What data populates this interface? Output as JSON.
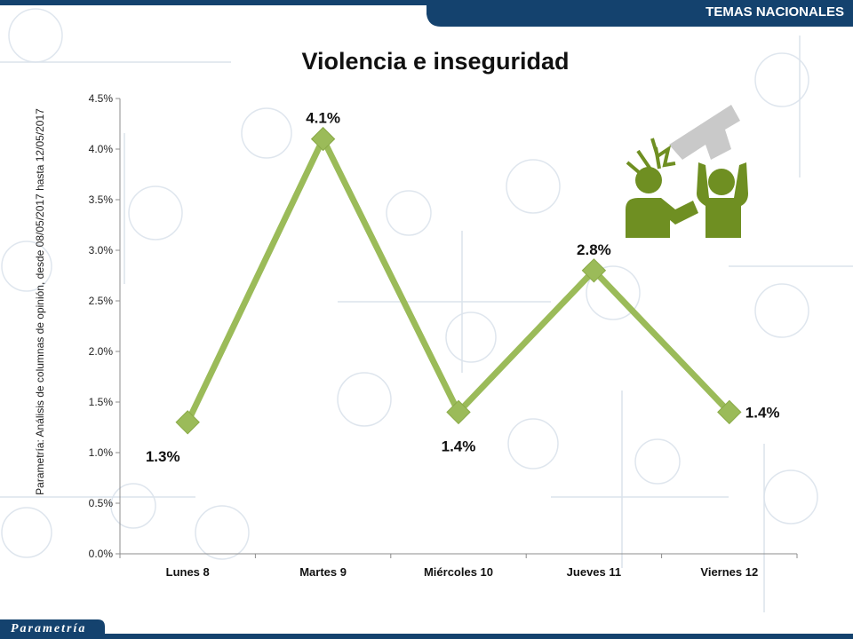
{
  "header": {
    "banner": "TEMAS NACIONALES"
  },
  "footer": {
    "brand": "Parametría"
  },
  "colors": {
    "primary": "#14426e",
    "line": "#9bbb59",
    "marker": "#9bbb59",
    "icon_green": "#6f8f22",
    "icon_gun": "#c7c7c7"
  },
  "icons": {
    "illustration": "gun-threat-icon"
  },
  "chart_data": {
    "type": "line",
    "title": "Violencia e inseguridad",
    "ylabel": "Parametría: Análisis de columnas de opinión, desde 08/05/2017 hasta 12/05/2017",
    "xlabel": "",
    "categories": [
      "Lunes 8",
      "Martes 9",
      "Miércoles 10",
      "Jueves 11",
      "Viernes 12"
    ],
    "values": [
      1.3,
      4.1,
      1.4,
      2.8,
      1.4
    ],
    "data_labels": [
      "1.3%",
      "4.1%",
      "1.4%",
      "2.8%",
      "1.4%"
    ],
    "ylim": [
      0,
      4.5
    ],
    "yticks": [
      0,
      0.5,
      1.0,
      1.5,
      2.0,
      2.5,
      3.0,
      3.5,
      4.0,
      4.5
    ],
    "ytick_labels": [
      "0.0%",
      "0.5%",
      "1.0%",
      "1.5%",
      "2.0%",
      "2.5%",
      "3.0%",
      "3.5%",
      "4.0%",
      "4.5%"
    ],
    "grid": false,
    "legend": "none"
  }
}
